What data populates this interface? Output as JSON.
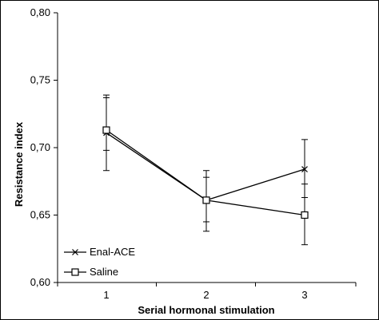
{
  "chart_data": {
    "type": "line",
    "xlabel": "Serial hormonal stimulation",
    "ylabel": "Resistance index",
    "x": [
      1,
      2,
      3
    ],
    "x_tick_labels": [
      "1",
      "2",
      "3"
    ],
    "ylim": [
      0.6,
      0.8
    ],
    "y_ticks": [
      0.6,
      0.65,
      0.7,
      0.75,
      0.8
    ],
    "y_tick_labels": [
      "0,60",
      "0,65",
      "0,70",
      "0,75",
      "0,80"
    ],
    "grid": false,
    "legend_position": "bottom-left",
    "series": [
      {
        "name": "Enal-ACE",
        "marker": "x",
        "color": "#000000",
        "values": [
          0.711,
          0.661,
          0.684
        ],
        "error_upper": [
          0.739,
          0.683,
          0.706
        ],
        "error_lower": [
          0.683,
          0.645,
          0.663
        ]
      },
      {
        "name": "Saline",
        "marker": "square",
        "color": "#000000",
        "values": [
          0.713,
          0.661,
          0.65
        ],
        "error_upper": [
          0.737,
          0.678,
          0.673
        ],
        "error_lower": [
          0.698,
          0.638,
          0.628
        ]
      }
    ]
  }
}
